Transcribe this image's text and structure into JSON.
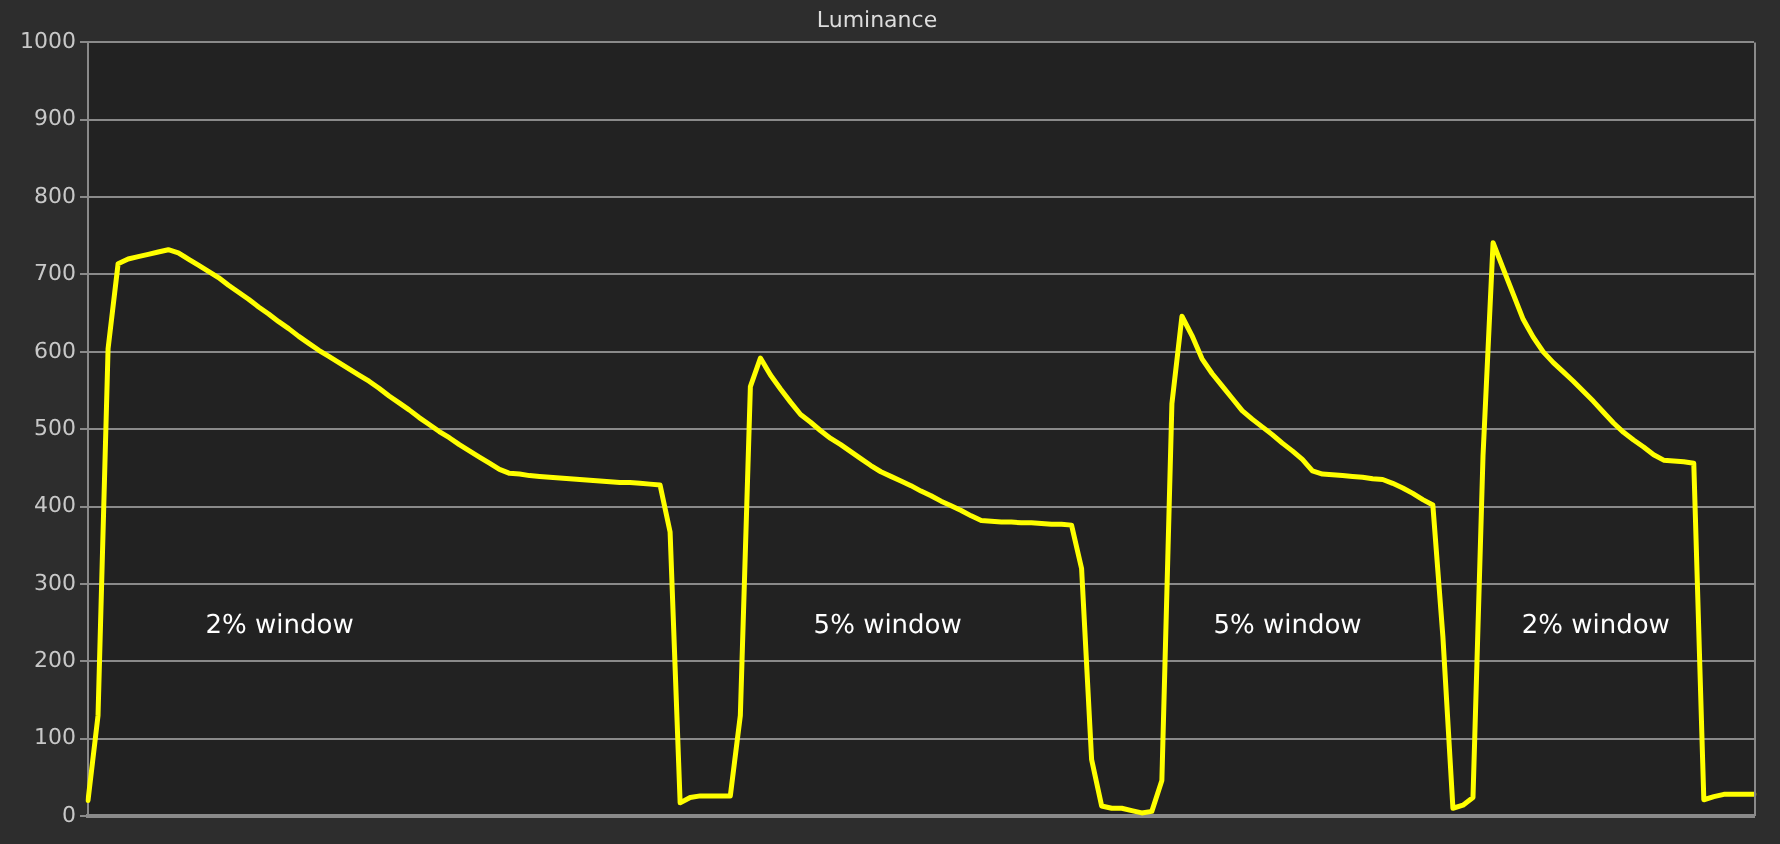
{
  "chart_data": {
    "type": "line",
    "title": "Luminance",
    "categories": [
      null,
      null,
      null,
      null,
      null,
      null,
      null,
      null,
      null,
      null,
      null,
      null,
      null,
      null,
      null,
      null,
      null,
      null,
      null,
      null,
      null,
      null,
      null,
      null,
      null,
      null,
      null,
      null,
      null,
      null,
      null,
      null,
      null,
      null,
      null,
      null,
      null,
      null,
      null,
      null,
      null,
      null,
      null,
      null,
      null,
      null,
      null,
      null,
      null,
      null,
      null,
      null,
      null,
      null,
      null,
      null,
      null,
      null,
      null,
      null,
      null,
      null,
      null,
      null,
      null,
      null,
      null,
      null,
      null,
      null,
      null,
      null,
      null,
      null,
      null,
      null,
      null,
      null,
      null,
      null,
      null,
      null,
      null,
      null,
      null,
      null,
      null,
      null,
      null,
      null,
      null,
      null,
      null,
      null,
      null,
      null,
      null,
      null,
      null,
      null,
      null,
      null,
      null,
      null,
      null,
      null,
      null,
      null,
      null,
      null,
      null,
      null,
      null,
      null,
      null,
      null,
      null,
      null,
      null,
      null,
      null,
      null,
      null,
      null,
      null,
      null,
      null,
      null,
      null,
      null,
      null,
      null,
      null,
      null,
      null,
      null,
      null,
      null,
      null,
      null,
      null,
      null,
      null,
      null,
      null,
      null,
      null,
      null,
      null,
      null,
      null,
      null,
      null,
      null,
      null,
      null,
      null,
      null,
      null,
      null,
      null,
      null,
      null,
      null,
      null,
      null,
      null
    ],
    "series": [
      {
        "color": "#ffff00",
        "values": [
          20,
          130,
          604,
          714,
          720,
          723,
          726,
          729,
          732,
          728,
          720,
          712,
          704,
          696,
          686,
          677,
          668,
          658,
          649,
          639,
          630,
          620,
          611,
          602,
          594,
          586,
          578,
          570,
          562,
          553,
          543,
          534,
          525,
          515,
          506,
          497,
          489,
          480,
          472,
          464,
          456,
          448,
          443,
          442,
          440,
          439,
          438,
          437,
          436,
          435,
          434,
          433,
          432,
          431,
          431,
          430,
          429,
          428,
          367,
          17,
          24,
          26,
          26,
          26,
          26,
          130,
          555,
          592,
          570,
          552,
          535,
          519,
          509,
          498,
          488,
          480,
          471,
          462,
          453,
          445,
          439,
          433,
          427,
          420,
          414,
          407,
          401,
          395,
          388,
          382,
          381,
          380,
          380,
          379,
          379,
          378,
          377,
          377,
          376,
          320,
          73,
          13,
          10,
          10,
          7,
          4,
          6,
          46,
          533,
          646,
          621,
          591,
          572,
          556,
          540,
          524,
          513,
          503,
          493,
          482,
          472,
          461,
          446,
          442,
          441,
          440,
          439,
          438,
          436,
          435,
          430,
          424,
          417,
          409,
          402,
          232,
          10,
          14,
          24,
          466,
          741,
          708,
          675,
          642,
          619,
          600,
          586,
          574,
          562,
          549,
          536,
          522,
          508,
          496,
          486,
          477,
          467,
          460,
          459,
          458,
          456,
          21,
          25,
          28,
          28,
          28,
          28
        ]
      }
    ],
    "ylim": [
      0,
      1000
    ],
    "yticks": [
      0,
      100,
      200,
      300,
      400,
      500,
      600,
      700,
      800,
      900,
      1000
    ],
    "grid": "y",
    "marker": "none",
    "line_style": "solid",
    "legend": false,
    "annotations": [
      "2% window",
      "5% window",
      "5% window",
      "2% window"
    ]
  }
}
